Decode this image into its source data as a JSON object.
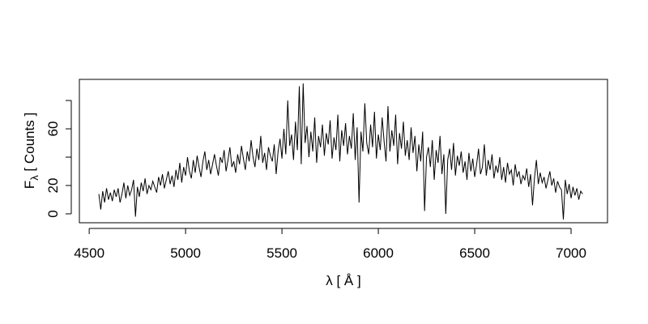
{
  "chart_data": {
    "type": "line",
    "xlabel": "λ [ Å ]",
    "ylabel": {
      "main": "F",
      "sub": "λ",
      "rest": " [ Counts ]"
    },
    "color": "#000000",
    "xlim": [
      4449,
      7189
    ],
    "ylim": [
      -6.3,
      94.9
    ],
    "xticks": [
      4500,
      5000,
      5500,
      6000,
      6500,
      7000
    ],
    "yticks": [
      0,
      20,
      60
    ],
    "yticks_unlabeled": [
      40,
      80
    ],
    "x": [
      4550,
      4560,
      4570,
      4580,
      4590,
      4600,
      4610,
      4620,
      4630,
      4640,
      4650,
      4660,
      4670,
      4680,
      4690,
      4700,
      4710,
      4720,
      4730,
      4740,
      4750,
      4760,
      4770,
      4780,
      4790,
      4800,
      4810,
      4820,
      4830,
      4840,
      4850,
      4860,
      4870,
      4880,
      4890,
      4900,
      4910,
      4920,
      4930,
      4940,
      4950,
      4960,
      4970,
      4980,
      4990,
      5000,
      5010,
      5020,
      5030,
      5040,
      5050,
      5060,
      5070,
      5080,
      5090,
      5100,
      5110,
      5120,
      5130,
      5140,
      5150,
      5160,
      5170,
      5180,
      5190,
      5200,
      5210,
      5220,
      5230,
      5240,
      5250,
      5260,
      5270,
      5280,
      5290,
      5300,
      5310,
      5320,
      5330,
      5340,
      5350,
      5360,
      5370,
      5380,
      5390,
      5400,
      5410,
      5420,
      5430,
      5440,
      5450,
      5460,
      5470,
      5480,
      5490,
      5500,
      5510,
      5520,
      5530,
      5540,
      5550,
      5560,
      5570,
      5580,
      5590,
      5600,
      5610,
      5620,
      5630,
      5640,
      5650,
      5660,
      5670,
      5680,
      5690,
      5700,
      5710,
      5720,
      5730,
      5740,
      5750,
      5760,
      5770,
      5780,
      5790,
      5800,
      5810,
      5820,
      5830,
      5840,
      5850,
      5860,
      5870,
      5880,
      5890,
      5900,
      5910,
      5920,
      5930,
      5940,
      5950,
      5960,
      5970,
      5980,
      5990,
      6000,
      6010,
      6020,
      6030,
      6040,
      6050,
      6060,
      6070,
      6080,
      6090,
      6100,
      6110,
      6120,
      6130,
      6140,
      6150,
      6160,
      6170,
      6180,
      6190,
      6200,
      6210,
      6220,
      6230,
      6240,
      6250,
      6260,
      6270,
      6280,
      6290,
      6300,
      6310,
      6320,
      6330,
      6340,
      6350,
      6360,
      6370,
      6380,
      6390,
      6400,
      6410,
      6420,
      6430,
      6440,
      6450,
      6460,
      6470,
      6480,
      6490,
      6500,
      6510,
      6520,
      6530,
      6540,
      6550,
      6560,
      6570,
      6580,
      6590,
      6600,
      6610,
      6620,
      6630,
      6640,
      6650,
      6660,
      6670,
      6680,
      6690,
      6700,
      6710,
      6720,
      6730,
      6740,
      6750,
      6760,
      6770,
      6780,
      6790,
      6800,
      6810,
      6820,
      6830,
      6840,
      6850,
      6860,
      6870,
      6880,
      6890,
      6900,
      6910,
      6920,
      6930,
      6940,
      6950,
      6960,
      6970,
      6980,
      6990,
      7000,
      7010,
      7020,
      7030,
      7040,
      7050,
      7060
    ],
    "values": [
      14,
      3,
      16,
      8,
      18,
      10,
      15,
      9,
      17,
      12,
      18,
      8,
      14,
      22,
      11,
      20,
      13,
      17,
      24,
      -2,
      19,
      12,
      22,
      16,
      25,
      14,
      20,
      17,
      23,
      19,
      15,
      26,
      20,
      28,
      18,
      24,
      30,
      21,
      27,
      19,
      31,
      24,
      36,
      22,
      33,
      27,
      40,
      30,
      25,
      38,
      29,
      41,
      33,
      26,
      37,
      44,
      31,
      38,
      28,
      35,
      42,
      34,
      27,
      40,
      36,
      45,
      30,
      38,
      47,
      33,
      37,
      29,
      42,
      35,
      48,
      39,
      31,
      44,
      37,
      52,
      40,
      33,
      46,
      38,
      55,
      36,
      43,
      31,
      47,
      41,
      37,
      49,
      28,
      44,
      53,
      39,
      60,
      42,
      80,
      48,
      56,
      38,
      65,
      45,
      90,
      35,
      92,
      50,
      62,
      40,
      58,
      44,
      68,
      36,
      55,
      47,
      63,
      41,
      57,
      49,
      66,
      39,
      54,
      45,
      70,
      37,
      59,
      48,
      64,
      42,
      55,
      46,
      71,
      38,
      61,
      8,
      58,
      44,
      78,
      50,
      42,
      63,
      47,
      72,
      39,
      56,
      45,
      68,
      51,
      37,
      76,
      44,
      59,
      48,
      70,
      35,
      57,
      46,
      65,
      41,
      52,
      38,
      61,
      43,
      55,
      30,
      49,
      37,
      58,
      2,
      40,
      47,
      33,
      52,
      24,
      45,
      36,
      55,
      28,
      42,
      0,
      38,
      46,
      31,
      50,
      27,
      41,
      34,
      44,
      29,
      37,
      24,
      43,
      30,
      39,
      26,
      35,
      46,
      28,
      33,
      49,
      27,
      38,
      31,
      42,
      25,
      34,
      29,
      40,
      24,
      33,
      22,
      36,
      28,
      31,
      20,
      35,
      26,
      30,
      21,
      27,
      24,
      32,
      19,
      28,
      6,
      25,
      38,
      21,
      29,
      22,
      26,
      18,
      24,
      30,
      20,
      25,
      15,
      23,
      19,
      17,
      -4,
      24,
      14,
      21,
      11,
      19,
      13,
      18,
      10,
      16,
      14
    ]
  }
}
